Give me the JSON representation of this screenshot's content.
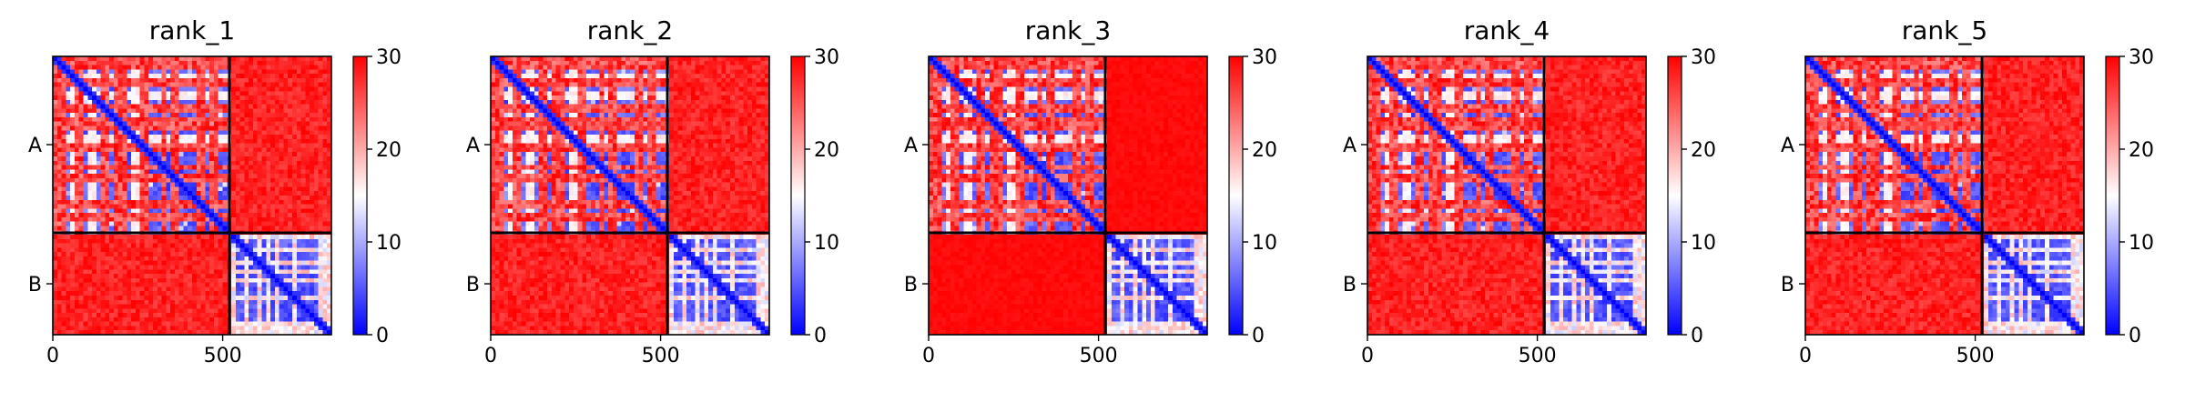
{
  "chart_data": [
    {
      "type": "heatmap",
      "title": "rank_1",
      "x_ticks": [
        "0",
        "500"
      ],
      "y_tick_labels": [
        "A",
        "B"
      ],
      "chains": [
        {
          "label": "A",
          "start": 0,
          "end": 520
        },
        {
          "label": "B",
          "start": 520,
          "end": 820
        }
      ],
      "colorbar": {
        "min": 0,
        "max": 30,
        "ticks": [
          "0",
          "10",
          "20",
          "30"
        ],
        "colormap": "bwr"
      },
      "matrix_summary": {
        "intra_A": "low (blue) with red/white stripes",
        "intra_B": "low (blue) with white stripes",
        "inter_chain": 30,
        "diagonal": 0
      }
    },
    {
      "type": "heatmap",
      "title": "rank_2",
      "x_ticks": [
        "0",
        "500"
      ],
      "y_tick_labels": [
        "A",
        "B"
      ],
      "chains": [
        {
          "label": "A",
          "start": 0,
          "end": 520
        },
        {
          "label": "B",
          "start": 520,
          "end": 820
        }
      ],
      "colorbar": {
        "min": 0,
        "max": 30,
        "ticks": [
          "0",
          "10",
          "20",
          "30"
        ],
        "colormap": "bwr"
      },
      "matrix_summary": {
        "intra_A": "low (blue) with red/white stripes",
        "intra_B": "low (blue) with white stripes",
        "inter_chain": 30,
        "diagonal": 0
      }
    },
    {
      "type": "heatmap",
      "title": "rank_3",
      "x_ticks": [
        "0",
        "500"
      ],
      "y_tick_labels": [
        "A",
        "B"
      ],
      "chains": [
        {
          "label": "A",
          "start": 0,
          "end": 520
        },
        {
          "label": "B",
          "start": 520,
          "end": 820
        }
      ],
      "colorbar": {
        "min": 0,
        "max": 30,
        "ticks": [
          "0",
          "10",
          "20",
          "30"
        ],
        "colormap": "bwr"
      },
      "matrix_summary": {
        "intra_A": "low (blue) with red/white stripes",
        "intra_B": "low (blue) with white stripes",
        "inter_chain": 30,
        "diagonal": 0
      }
    },
    {
      "type": "heatmap",
      "title": "rank_4",
      "x_ticks": [
        "0",
        "500"
      ],
      "y_tick_labels": [
        "A",
        "B"
      ],
      "chains": [
        {
          "label": "A",
          "start": 0,
          "end": 520
        },
        {
          "label": "B",
          "start": 520,
          "end": 820
        }
      ],
      "colorbar": {
        "min": 0,
        "max": 30,
        "ticks": [
          "0",
          "10",
          "20",
          "30"
        ],
        "colormap": "bwr"
      },
      "matrix_summary": {
        "intra_A": "low (blue) with red/white stripes",
        "intra_B": "low (blue) with white stripes",
        "inter_chain": 30,
        "diagonal": 0
      }
    },
    {
      "type": "heatmap",
      "title": "rank_5",
      "x_ticks": [
        "0",
        "500"
      ],
      "y_tick_labels": [
        "A",
        "B"
      ],
      "chains": [
        {
          "label": "A",
          "start": 0,
          "end": 520
        },
        {
          "label": "B",
          "start": 520,
          "end": 820
        }
      ],
      "colorbar": {
        "min": 0,
        "max": 30,
        "ticks": [
          "0",
          "10",
          "20",
          "30"
        ],
        "colormap": "bwr"
      },
      "matrix_summary": {
        "intra_A": "low (blue) with red/white stripes",
        "intra_B": "low (blue) with white stripes",
        "inter_chain": 30,
        "diagonal": 0
      }
    }
  ],
  "colors": {
    "low": "#0000ff",
    "mid": "#ffffff",
    "high": "#ff0000",
    "axis": "#000000"
  }
}
